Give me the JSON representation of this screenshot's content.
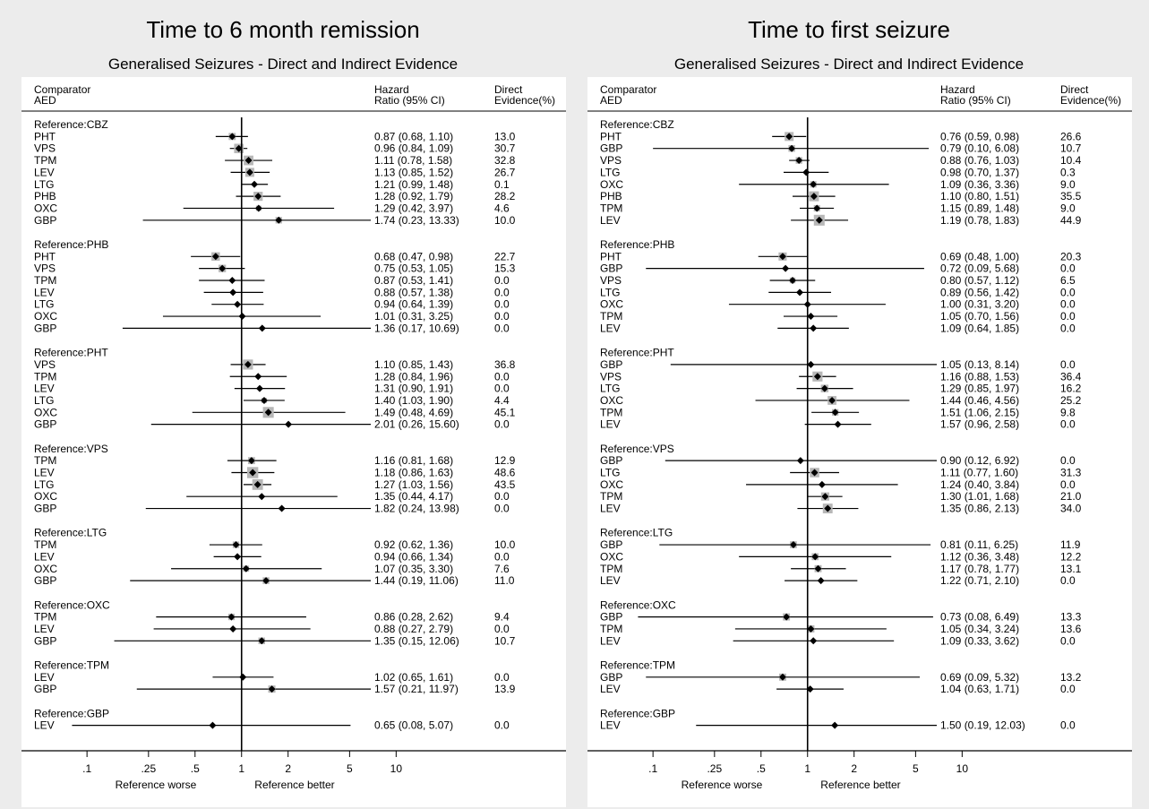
{
  "chart_data": [
    {
      "type": "forest",
      "title": "Time to 6 month remission",
      "subtitle": "Generalised Seizures - Direct and Indirect Evidence",
      "column_headers": {
        "comparator": [
          "Comparator",
          "AED"
        ],
        "hr": [
          "Hazard",
          "Ratio (95% CI)"
        ],
        "direct": [
          "Direct",
          "Evidence(%)"
        ]
      },
      "x_scale": "log",
      "xlim": [
        0.066,
        12
      ],
      "reference_line": 1,
      "x_ticks": [
        {
          "v": 0.1,
          "label": ".1"
        },
        {
          "v": 0.25,
          "label": ".25"
        },
        {
          "v": 0.5,
          "label": ".5"
        },
        {
          "v": 1,
          "label": "1"
        },
        {
          "v": 2,
          "label": "2"
        },
        {
          "v": 5,
          "label": "5"
        },
        {
          "v": 10,
          "label": "10"
        }
      ],
      "x_left_label": "Reference worse",
      "x_right_label": "Reference better",
      "groups": [
        {
          "label": "Reference:CBZ",
          "rows": [
            {
              "aed": "PHT",
              "hr": 0.87,
              "lo": 0.68,
              "hi": 1.1,
              "ci": "0.87 (0.68, 1.10)",
              "direct": "13.0"
            },
            {
              "aed": "VPS",
              "hr": 0.96,
              "lo": 0.84,
              "hi": 1.09,
              "ci": "0.96 (0.84, 1.09)",
              "direct": "30.7"
            },
            {
              "aed": "TPM",
              "hr": 1.11,
              "lo": 0.78,
              "hi": 1.58,
              "ci": "1.11 (0.78, 1.58)",
              "direct": "32.8"
            },
            {
              "aed": "LEV",
              "hr": 1.13,
              "lo": 0.85,
              "hi": 1.52,
              "ci": "1.13 (0.85, 1.52)",
              "direct": "26.7"
            },
            {
              "aed": "LTG",
              "hr": 1.21,
              "lo": 0.99,
              "hi": 1.48,
              "ci": "1.21 (0.99, 1.48)",
              "direct": "0.1"
            },
            {
              "aed": "PHB",
              "hr": 1.28,
              "lo": 0.92,
              "hi": 1.79,
              "ci": "1.28 (0.92, 1.79)",
              "direct": "28.2"
            },
            {
              "aed": "OXC",
              "hr": 1.29,
              "lo": 0.42,
              "hi": 3.97,
              "ci": "1.29 (0.42, 3.97)",
              "direct": "4.6"
            },
            {
              "aed": "GBP",
              "hr": 1.74,
              "lo": 0.23,
              "hi": 13.33,
              "ci": "1.74 (0.23, 13.33)",
              "direct": "10.0"
            }
          ]
        },
        {
          "label": "Reference:PHB",
          "rows": [
            {
              "aed": "PHT",
              "hr": 0.68,
              "lo": 0.47,
              "hi": 0.98,
              "ci": "0.68 (0.47, 0.98)",
              "direct": "22.7"
            },
            {
              "aed": "VPS",
              "hr": 0.75,
              "lo": 0.53,
              "hi": 1.05,
              "ci": "0.75 (0.53, 1.05)",
              "direct": "15.3"
            },
            {
              "aed": "TPM",
              "hr": 0.87,
              "lo": 0.53,
              "hi": 1.41,
              "ci": "0.87 (0.53, 1.41)",
              "direct": "0.0"
            },
            {
              "aed": "LEV",
              "hr": 0.88,
              "lo": 0.57,
              "hi": 1.38,
              "ci": "0.88 (0.57, 1.38)",
              "direct": "0.0"
            },
            {
              "aed": "LTG",
              "hr": 0.94,
              "lo": 0.64,
              "hi": 1.39,
              "ci": "0.94 (0.64, 1.39)",
              "direct": "0.0"
            },
            {
              "aed": "OXC",
              "hr": 1.01,
              "lo": 0.31,
              "hi": 3.25,
              "ci": "1.01 (0.31, 3.25)",
              "direct": "0.0"
            },
            {
              "aed": "GBP",
              "hr": 1.36,
              "lo": 0.17,
              "hi": 10.69,
              "ci": "1.36 (0.17, 10.69)",
              "direct": "0.0"
            }
          ]
        },
        {
          "label": "Reference:PHT",
          "rows": [
            {
              "aed": "VPS",
              "hr": 1.1,
              "lo": 0.85,
              "hi": 1.43,
              "ci": "1.10 (0.85, 1.43)",
              "direct": "36.8"
            },
            {
              "aed": "TPM",
              "hr": 1.28,
              "lo": 0.84,
              "hi": 1.96,
              "ci": "1.28 (0.84, 1.96)",
              "direct": "0.0"
            },
            {
              "aed": "LEV",
              "hr": 1.31,
              "lo": 0.9,
              "hi": 1.91,
              "ci": "1.31 (0.90, 1.91)",
              "direct": "0.0"
            },
            {
              "aed": "LTG",
              "hr": 1.4,
              "lo": 1.03,
              "hi": 1.9,
              "ci": "1.40 (1.03, 1.90)",
              "direct": "4.4"
            },
            {
              "aed": "OXC",
              "hr": 1.49,
              "lo": 0.48,
              "hi": 4.69,
              "ci": "1.49 (0.48, 4.69)",
              "direct": "45.1"
            },
            {
              "aed": "GBP",
              "hr": 2.01,
              "lo": 0.26,
              "hi": 15.6,
              "ci": "2.01 (0.26, 15.60)",
              "direct": "0.0"
            }
          ]
        },
        {
          "label": "Reference:VPS",
          "rows": [
            {
              "aed": "TPM",
              "hr": 1.16,
              "lo": 0.81,
              "hi": 1.68,
              "ci": "1.16 (0.81, 1.68)",
              "direct": "12.9"
            },
            {
              "aed": "LEV",
              "hr": 1.18,
              "lo": 0.86,
              "hi": 1.63,
              "ci": "1.18 (0.86, 1.63)",
              "direct": "48.6"
            },
            {
              "aed": "LTG",
              "hr": 1.27,
              "lo": 1.03,
              "hi": 1.56,
              "ci": "1.27 (1.03, 1.56)",
              "direct": "43.5"
            },
            {
              "aed": "OXC",
              "hr": 1.35,
              "lo": 0.44,
              "hi": 4.17,
              "ci": "1.35 (0.44, 4.17)",
              "direct": "0.0"
            },
            {
              "aed": "GBP",
              "hr": 1.82,
              "lo": 0.24,
              "hi": 13.98,
              "ci": "1.82 (0.24, 13.98)",
              "direct": "0.0"
            }
          ]
        },
        {
          "label": "Reference:LTG",
          "rows": [
            {
              "aed": "TPM",
              "hr": 0.92,
              "lo": 0.62,
              "hi": 1.36,
              "ci": "0.92 (0.62, 1.36)",
              "direct": "10.0"
            },
            {
              "aed": "LEV",
              "hr": 0.94,
              "lo": 0.66,
              "hi": 1.34,
              "ci": "0.94 (0.66, 1.34)",
              "direct": "0.0"
            },
            {
              "aed": "OXC",
              "hr": 1.07,
              "lo": 0.35,
              "hi": 3.3,
              "ci": "1.07 (0.35, 3.30)",
              "direct": "7.6"
            },
            {
              "aed": "GBP",
              "hr": 1.44,
              "lo": 0.19,
              "hi": 11.06,
              "ci": "1.44 (0.19, 11.06)",
              "direct": "11.0"
            }
          ]
        },
        {
          "label": "Reference:OXC",
          "rows": [
            {
              "aed": "TPM",
              "hr": 0.86,
              "lo": 0.28,
              "hi": 2.62,
              "ci": "0.86 (0.28, 2.62)",
              "direct": "9.4"
            },
            {
              "aed": "LEV",
              "hr": 0.88,
              "lo": 0.27,
              "hi": 2.79,
              "ci": "0.88 (0.27, 2.79)",
              "direct": "0.0"
            },
            {
              "aed": "GBP",
              "hr": 1.35,
              "lo": 0.15,
              "hi": 12.06,
              "ci": "1.35 (0.15, 12.06)",
              "direct": "10.7"
            }
          ]
        },
        {
          "label": "Reference:TPM",
          "rows": [
            {
              "aed": "LEV",
              "hr": 1.02,
              "lo": 0.65,
              "hi": 1.61,
              "ci": "1.02 (0.65, 1.61)",
              "direct": "0.0"
            },
            {
              "aed": "GBP",
              "hr": 1.57,
              "lo": 0.21,
              "hi": 11.97,
              "ci": "1.57 (0.21, 11.97)",
              "direct": "13.9"
            }
          ]
        },
        {
          "label": "Reference:GBP",
          "rows": [
            {
              "aed": "LEV",
              "hr": 0.65,
              "lo": 0.08,
              "hi": 5.07,
              "ci": "0.65 (0.08, 5.07)",
              "direct": "0.0"
            }
          ]
        }
      ]
    },
    {
      "type": "forest",
      "title": "Time to first seizure",
      "subtitle": "Generalised Seizures - Direct and Indirect Evidence",
      "column_headers": {
        "comparator": [
          "Comparator",
          "AED"
        ],
        "hr": [
          "Hazard",
          "Ratio (95% CI)"
        ],
        "direct": [
          "Direct",
          "Evidence(%)"
        ]
      },
      "x_scale": "log",
      "xlim": [
        0.066,
        12
      ],
      "reference_line": 1,
      "x_ticks": [
        {
          "v": 0.1,
          "label": ".1"
        },
        {
          "v": 0.25,
          "label": ".25"
        },
        {
          "v": 0.5,
          "label": ".5"
        },
        {
          "v": 1,
          "label": "1"
        },
        {
          "v": 2,
          "label": "2"
        },
        {
          "v": 5,
          "label": "5"
        },
        {
          "v": 10,
          "label": "10"
        }
      ],
      "x_left_label": "Reference worse",
      "x_right_label": "Reference better",
      "groups": [
        {
          "label": "Reference:CBZ",
          "rows": [
            {
              "aed": "PHT",
              "hr": 0.76,
              "lo": 0.59,
              "hi": 0.98,
              "ci": "0.76 (0.59, 0.98)",
              "direct": "26.6"
            },
            {
              "aed": "GBP",
              "hr": 0.79,
              "lo": 0.1,
              "hi": 6.08,
              "ci": "0.79 (0.10, 6.08)",
              "direct": "10.7"
            },
            {
              "aed": "VPS",
              "hr": 0.88,
              "lo": 0.76,
              "hi": 1.03,
              "ci": "0.88 (0.76, 1.03)",
              "direct": "10.4"
            },
            {
              "aed": "LTG",
              "hr": 0.98,
              "lo": 0.7,
              "hi": 1.37,
              "ci": "0.98 (0.70, 1.37)",
              "direct": "0.3"
            },
            {
              "aed": "OXC",
              "hr": 1.09,
              "lo": 0.36,
              "hi": 3.36,
              "ci": "1.09 (0.36, 3.36)",
              "direct": "9.0"
            },
            {
              "aed": "PHB",
              "hr": 1.1,
              "lo": 0.8,
              "hi": 1.51,
              "ci": "1.10 (0.80, 1.51)",
              "direct": "35.5"
            },
            {
              "aed": "TPM",
              "hr": 1.15,
              "lo": 0.89,
              "hi": 1.48,
              "ci": "1.15 (0.89, 1.48)",
              "direct": "9.0"
            },
            {
              "aed": "LEV",
              "hr": 1.19,
              "lo": 0.78,
              "hi": 1.83,
              "ci": "1.19 (0.78, 1.83)",
              "direct": "44.9"
            }
          ]
        },
        {
          "label": "Reference:PHB",
          "rows": [
            {
              "aed": "PHT",
              "hr": 0.69,
              "lo": 0.48,
              "hi": 1.0,
              "ci": "0.69 (0.48, 1.00)",
              "direct": "20.3"
            },
            {
              "aed": "GBP",
              "hr": 0.72,
              "lo": 0.09,
              "hi": 5.68,
              "ci": "0.72 (0.09, 5.68)",
              "direct": "0.0"
            },
            {
              "aed": "VPS",
              "hr": 0.8,
              "lo": 0.57,
              "hi": 1.12,
              "ci": "0.80 (0.57, 1.12)",
              "direct": "6.5"
            },
            {
              "aed": "LTG",
              "hr": 0.89,
              "lo": 0.56,
              "hi": 1.42,
              "ci": "0.89 (0.56, 1.42)",
              "direct": "0.0"
            },
            {
              "aed": "OXC",
              "hr": 1.0,
              "lo": 0.31,
              "hi": 3.2,
              "ci": "1.00 (0.31, 3.20)",
              "direct": "0.0"
            },
            {
              "aed": "TPM",
              "hr": 1.05,
              "lo": 0.7,
              "hi": 1.56,
              "ci": "1.05 (0.70, 1.56)",
              "direct": "0.0"
            },
            {
              "aed": "LEV",
              "hr": 1.09,
              "lo": 0.64,
              "hi": 1.85,
              "ci": "1.09 (0.64, 1.85)",
              "direct": "0.0"
            }
          ]
        },
        {
          "label": "Reference:PHT",
          "rows": [
            {
              "aed": "GBP",
              "hr": 1.05,
              "lo": 0.13,
              "hi": 8.14,
              "ci": "1.05 (0.13, 8.14)",
              "direct": "0.0"
            },
            {
              "aed": "VPS",
              "hr": 1.16,
              "lo": 0.88,
              "hi": 1.53,
              "ci": "1.16 (0.88, 1.53)",
              "direct": "36.4"
            },
            {
              "aed": "LTG",
              "hr": 1.29,
              "lo": 0.85,
              "hi": 1.97,
              "ci": "1.29 (0.85, 1.97)",
              "direct": "16.2"
            },
            {
              "aed": "OXC",
              "hr": 1.44,
              "lo": 0.46,
              "hi": 4.56,
              "ci": "1.44 (0.46, 4.56)",
              "direct": "25.2"
            },
            {
              "aed": "TPM",
              "hr": 1.51,
              "lo": 1.06,
              "hi": 2.15,
              "ci": "1.51 (1.06, 2.15)",
              "direct": "9.8"
            },
            {
              "aed": "LEV",
              "hr": 1.57,
              "lo": 0.96,
              "hi": 2.58,
              "ci": "1.57 (0.96, 2.58)",
              "direct": "0.0"
            }
          ]
        },
        {
          "label": "Reference:VPS",
          "rows": [
            {
              "aed": "GBP",
              "hr": 0.9,
              "lo": 0.12,
              "hi": 6.92,
              "ci": "0.90 (0.12, 6.92)",
              "direct": "0.0"
            },
            {
              "aed": "LTG",
              "hr": 1.11,
              "lo": 0.77,
              "hi": 1.6,
              "ci": "1.11 (0.77, 1.60)",
              "direct": "31.3"
            },
            {
              "aed": "OXC",
              "hr": 1.24,
              "lo": 0.4,
              "hi": 3.84,
              "ci": "1.24 (0.40, 3.84)",
              "direct": "0.0"
            },
            {
              "aed": "TPM",
              "hr": 1.3,
              "lo": 1.01,
              "hi": 1.68,
              "ci": "1.30 (1.01, 1.68)",
              "direct": "21.0"
            },
            {
              "aed": "LEV",
              "hr": 1.35,
              "lo": 0.86,
              "hi": 2.13,
              "ci": "1.35 (0.86, 2.13)",
              "direct": "34.0"
            }
          ]
        },
        {
          "label": "Reference:LTG",
          "rows": [
            {
              "aed": "GBP",
              "hr": 0.81,
              "lo": 0.11,
              "hi": 6.25,
              "ci": "0.81 (0.11, 6.25)",
              "direct": "11.9"
            },
            {
              "aed": "OXC",
              "hr": 1.12,
              "lo": 0.36,
              "hi": 3.48,
              "ci": "1.12 (0.36, 3.48)",
              "direct": "12.2"
            },
            {
              "aed": "TPM",
              "hr": 1.17,
              "lo": 0.78,
              "hi": 1.77,
              "ci": "1.17 (0.78, 1.77)",
              "direct": "13.1"
            },
            {
              "aed": "LEV",
              "hr": 1.22,
              "lo": 0.71,
              "hi": 2.1,
              "ci": "1.22 (0.71, 2.10)",
              "direct": "0.0"
            }
          ]
        },
        {
          "label": "Reference:OXC",
          "rows": [
            {
              "aed": "GBP",
              "hr": 0.73,
              "lo": 0.08,
              "hi": 6.49,
              "ci": "0.73 (0.08, 6.49)",
              "direct": "13.3"
            },
            {
              "aed": "TPM",
              "hr": 1.05,
              "lo": 0.34,
              "hi": 3.24,
              "ci": "1.05 (0.34, 3.24)",
              "direct": "13.6"
            },
            {
              "aed": "LEV",
              "hr": 1.09,
              "lo": 0.33,
              "hi": 3.62,
              "ci": "1.09 (0.33, 3.62)",
              "direct": "0.0"
            }
          ]
        },
        {
          "label": "Reference:TPM",
          "rows": [
            {
              "aed": "GBP",
              "hr": 0.69,
              "lo": 0.09,
              "hi": 5.32,
              "ci": "0.69 (0.09, 5.32)",
              "direct": "13.2"
            },
            {
              "aed": "LEV",
              "hr": 1.04,
              "lo": 0.63,
              "hi": 1.71,
              "ci": "1.04 (0.63, 1.71)",
              "direct": "0.0"
            }
          ]
        },
        {
          "label": "Reference:GBP",
          "rows": [
            {
              "aed": "LEV",
              "hr": 1.5,
              "lo": 0.19,
              "hi": 12.03,
              "ci": "1.50 (0.19, 12.03)",
              "direct": "0.0"
            }
          ]
        }
      ]
    }
  ]
}
